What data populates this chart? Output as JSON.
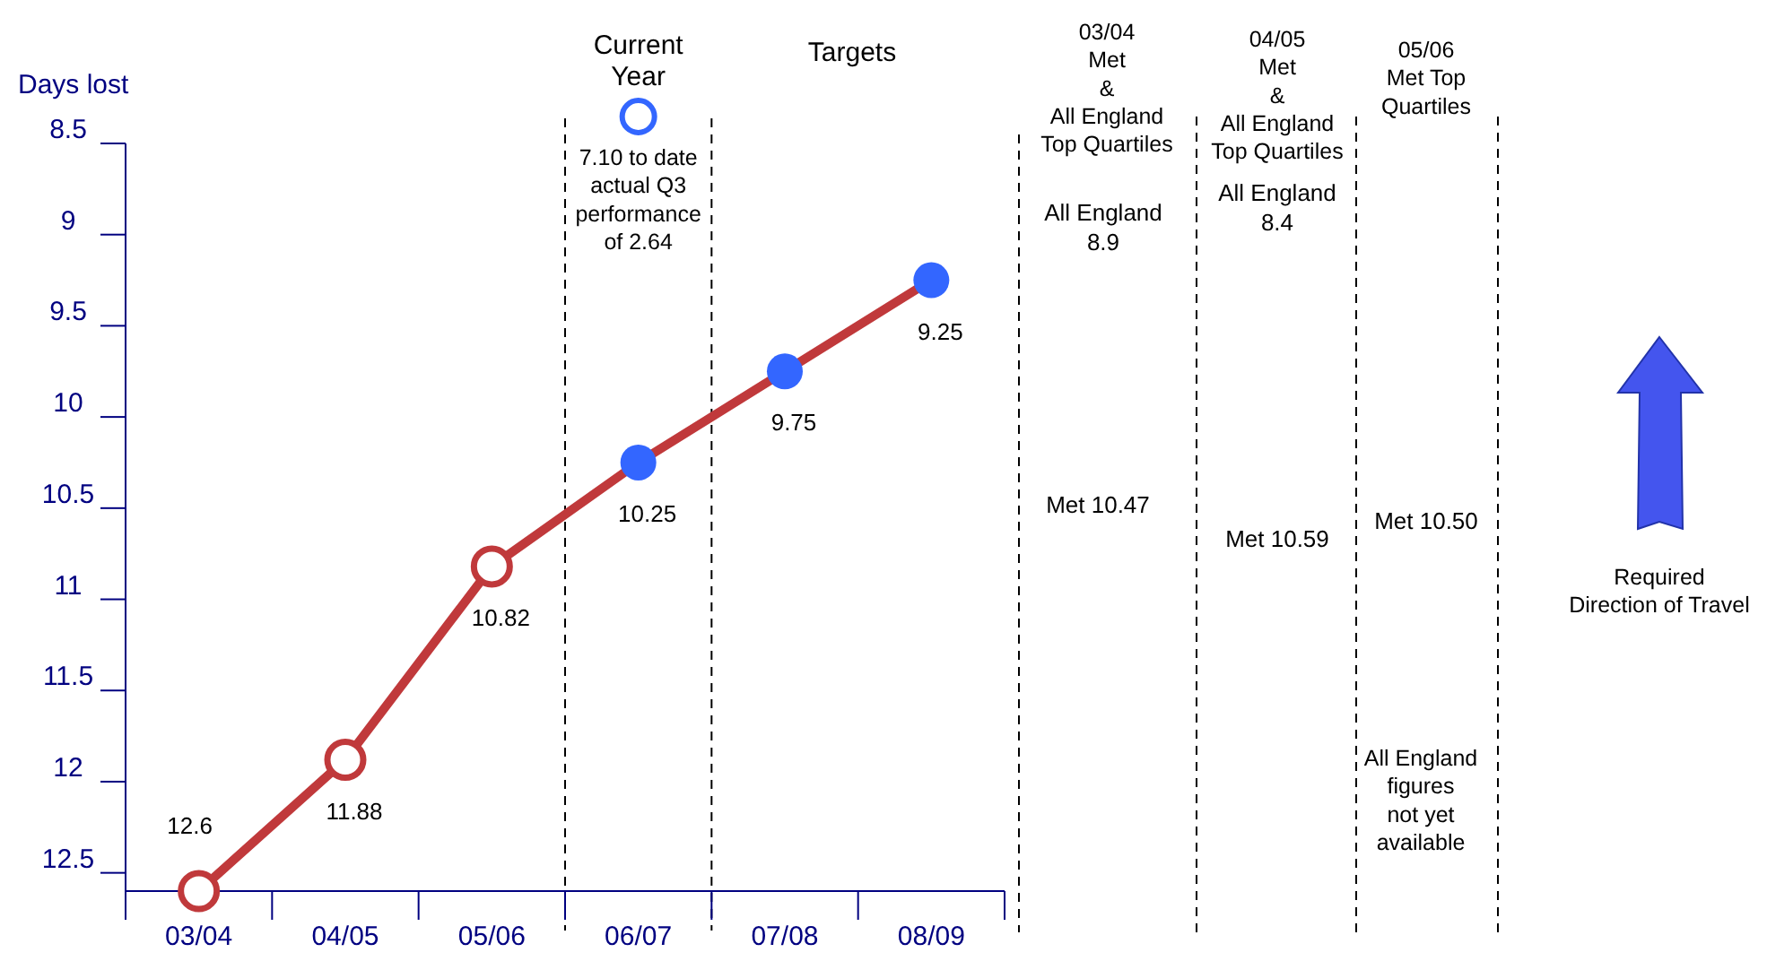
{
  "chart_data": {
    "type": "line",
    "ylabel": "Days lost",
    "categories": [
      "03/04",
      "04/05",
      "05/06",
      "06/07",
      "07/08",
      "08/09"
    ],
    "ylim": [
      12.6,
      8.5
    ],
    "yticks": [
      8.5,
      9,
      9.5,
      10,
      10.5,
      11,
      11.5,
      12,
      12.5
    ],
    "series": [
      {
        "color": "#c0393b",
        "marker": "circle",
        "colors": [
          "#c0393b",
          "#c0393b",
          "#c0393b",
          "#3366ff",
          "#3366ff",
          "#3366ff"
        ],
        "values": [
          12.6,
          11.88,
          10.82,
          10.25,
          9.75,
          9.25
        ]
      }
    ],
    "data_labels": true,
    "grid": false,
    "annotations": [
      "Current Year",
      "Targets",
      "7.10 to date\nactual Q3\nperformance\nof 2.64",
      "03/04\nMet\n&\nAll England\nTop Quartiles",
      "All England\n8.9",
      "Met 10.47",
      "04/05\nMet\n&\nAll England\nTop Quartiles",
      "All England\n8.4",
      "Met 10.59",
      "05/06\nMet Top\nQuartiles",
      "Met 10.50",
      "All England\nfigures\nnot yet\navailable",
      "Required\nDirection of Travel"
    ]
  }
}
